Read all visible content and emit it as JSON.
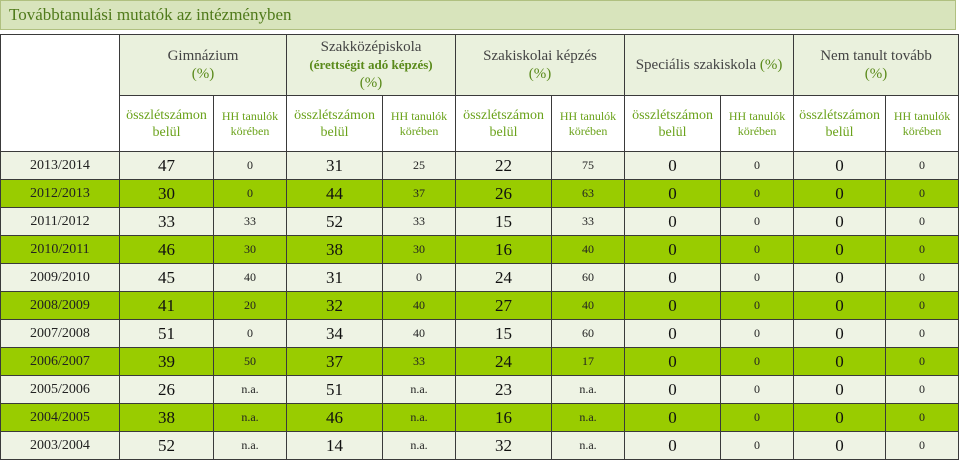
{
  "title": "Továbbtanulási mutatók az intézményben",
  "groups": [
    {
      "name": "Gimnázium",
      "sub": "",
      "pct": "(%)"
    },
    {
      "name": "Szakközépiskola",
      "sub": "(érettségit adó képzés)",
      "pct": "(%)"
    },
    {
      "name": "Szakiskolai képzés",
      "sub": "",
      "pct": "(%)"
    },
    {
      "name": "Speciális szakiskola",
      "sub": "",
      "pct": "(%)"
    },
    {
      "name": "Nem tanult tovább",
      "sub": "",
      "pct": "(%)"
    }
  ],
  "subheaders": {
    "total_a": "összlétszámon",
    "total_b": "belül",
    "hh_a": "HH tanulók",
    "hh_b": "körében"
  },
  "rows": [
    {
      "year": "2013/2014",
      "v": [
        "47",
        "0",
        "31",
        "25",
        "22",
        "75",
        "0",
        "0",
        "0",
        "0"
      ]
    },
    {
      "year": "2012/2013",
      "v": [
        "30",
        "0",
        "44",
        "37",
        "26",
        "63",
        "0",
        "0",
        "0",
        "0"
      ]
    },
    {
      "year": "2011/2012",
      "v": [
        "33",
        "33",
        "52",
        "33",
        "15",
        "33",
        "0",
        "0",
        "0",
        "0"
      ]
    },
    {
      "year": "2010/2011",
      "v": [
        "46",
        "30",
        "38",
        "30",
        "16",
        "40",
        "0",
        "0",
        "0",
        "0"
      ]
    },
    {
      "year": "2009/2010",
      "v": [
        "45",
        "40",
        "31",
        "0",
        "24",
        "60",
        "0",
        "0",
        "0",
        "0"
      ]
    },
    {
      "year": "2008/2009",
      "v": [
        "41",
        "20",
        "32",
        "40",
        "27",
        "40",
        "0",
        "0",
        "0",
        "0"
      ]
    },
    {
      "year": "2007/2008",
      "v": [
        "51",
        "0",
        "34",
        "40",
        "15",
        "60",
        "0",
        "0",
        "0",
        "0"
      ]
    },
    {
      "year": "2006/2007",
      "v": [
        "39",
        "50",
        "37",
        "33",
        "24",
        "17",
        "0",
        "0",
        "0",
        "0"
      ]
    },
    {
      "year": "2005/2006",
      "v": [
        "26",
        "n.a.",
        "51",
        "n.a.",
        "23",
        "n.a.",
        "0",
        "0",
        "0",
        "0"
      ]
    },
    {
      "year": "2004/2005",
      "v": [
        "38",
        "n.a.",
        "46",
        "n.a.",
        "16",
        "n.a.",
        "0",
        "0",
        "0",
        "0"
      ]
    },
    {
      "year": "2003/2004",
      "v": [
        "52",
        "n.a.",
        "14",
        "n.a.",
        "32",
        "n.a.",
        "0",
        "0",
        "0",
        "0"
      ]
    }
  ]
}
